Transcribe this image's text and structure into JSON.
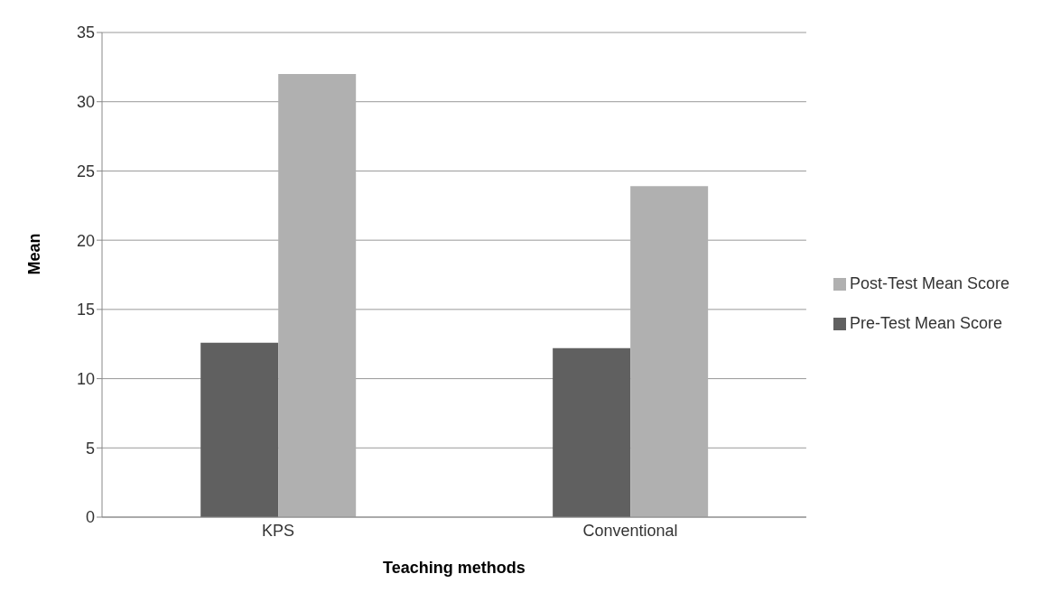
{
  "chart_data": {
    "type": "bar",
    "xlabel": "Teaching methods",
    "ylabel": "Mean",
    "categories": [
      "KPS",
      "Conventional"
    ],
    "series": [
      {
        "name": "Pre-Test Mean Score",
        "color": "#606060",
        "values": [
          12.6,
          12.2
        ]
      },
      {
        "name": "Post-Test Mean Score",
        "color": "#b0b0b0",
        "values": [
          32.0,
          23.9
        ]
      }
    ],
    "ylim": [
      0,
      35
    ],
    "yticks": [
      0,
      5,
      10,
      15,
      20,
      25,
      30,
      35
    ],
    "grid": "y",
    "legend": "right"
  }
}
